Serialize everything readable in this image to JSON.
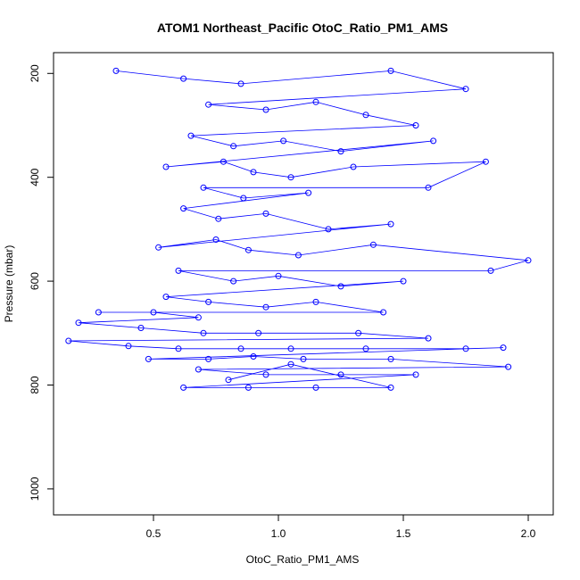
{
  "chart_data": {
    "type": "scatter",
    "title": "ATOM1 Northeast_Pacific OtoC_Ratio_PM1_AMS",
    "xlabel": "OtoC_Ratio_PM1_AMS",
    "ylabel": "Pressure (mbar)",
    "xlim": [
      0.1,
      2.1
    ],
    "ylim": [
      1050,
      160
    ],
    "y_reversed": true,
    "x_ticks": [
      0.5,
      1.0,
      1.5,
      2.0
    ],
    "x_tick_labels": [
      "0.5",
      "1.0",
      "1.5",
      "2.0"
    ],
    "y_ticks": [
      200,
      400,
      600,
      800,
      1000
    ],
    "y_tick_labels": [
      "200",
      "400",
      "600",
      "800",
      "1000"
    ],
    "grid": false,
    "legend": "none",
    "marker": "open-circle",
    "connected": true,
    "colors": {
      "series": "#0000ff",
      "axis": "#000000"
    },
    "series": [
      {
        "values": [
          [
            0.35,
            195
          ],
          [
            0.62,
            210
          ],
          [
            0.85,
            220
          ],
          [
            1.45,
            195
          ],
          [
            1.75,
            230
          ],
          [
            0.72,
            260
          ],
          [
            0.95,
            270
          ],
          [
            1.15,
            255
          ],
          [
            1.35,
            280
          ],
          [
            1.55,
            300
          ],
          [
            0.65,
            320
          ],
          [
            0.82,
            340
          ],
          [
            1.02,
            330
          ],
          [
            1.25,
            350
          ],
          [
            1.62,
            330
          ],
          [
            0.55,
            380
          ],
          [
            0.78,
            370
          ],
          [
            0.9,
            390
          ],
          [
            1.05,
            400
          ],
          [
            1.3,
            380
          ],
          [
            1.83,
            370
          ],
          [
            1.6,
            420
          ],
          [
            0.7,
            420
          ],
          [
            0.86,
            440
          ],
          [
            1.12,
            430
          ],
          [
            0.62,
            460
          ],
          [
            0.76,
            480
          ],
          [
            0.95,
            470
          ],
          [
            1.2,
            500
          ],
          [
            1.45,
            490
          ],
          [
            0.52,
            535
          ],
          [
            0.75,
            520
          ],
          [
            0.88,
            540
          ],
          [
            1.08,
            550
          ],
          [
            1.38,
            530
          ],
          [
            2.0,
            560
          ],
          [
            1.85,
            580
          ],
          [
            0.6,
            580
          ],
          [
            0.82,
            600
          ],
          [
            1.0,
            590
          ],
          [
            1.25,
            610
          ],
          [
            1.5,
            600
          ],
          [
            0.55,
            630
          ],
          [
            0.72,
            640
          ],
          [
            0.95,
            650
          ],
          [
            1.15,
            640
          ],
          [
            1.42,
            660
          ],
          [
            0.28,
            660
          ],
          [
            0.5,
            660
          ],
          [
            0.68,
            670
          ],
          [
            0.2,
            680
          ],
          [
            0.45,
            690
          ],
          [
            0.7,
            700
          ],
          [
            0.92,
            700
          ],
          [
            1.32,
            700
          ],
          [
            1.6,
            710
          ],
          [
            0.16,
            715
          ],
          [
            0.4,
            725
          ],
          [
            0.6,
            730
          ],
          [
            0.85,
            730
          ],
          [
            1.05,
            730
          ],
          [
            1.35,
            730
          ],
          [
            1.75,
            730
          ],
          [
            1.9,
            728
          ],
          [
            0.48,
            750
          ],
          [
            0.72,
            750
          ],
          [
            0.9,
            745
          ],
          [
            1.1,
            750
          ],
          [
            1.45,
            750
          ],
          [
            1.92,
            765
          ],
          [
            0.68,
            770
          ],
          [
            0.95,
            780
          ],
          [
            1.25,
            780
          ],
          [
            1.55,
            780
          ],
          [
            0.62,
            805
          ],
          [
            0.88,
            805
          ],
          [
            1.15,
            805
          ],
          [
            1.45,
            805
          ],
          [
            1.05,
            760
          ],
          [
            0.8,
            790
          ]
        ]
      }
    ]
  }
}
